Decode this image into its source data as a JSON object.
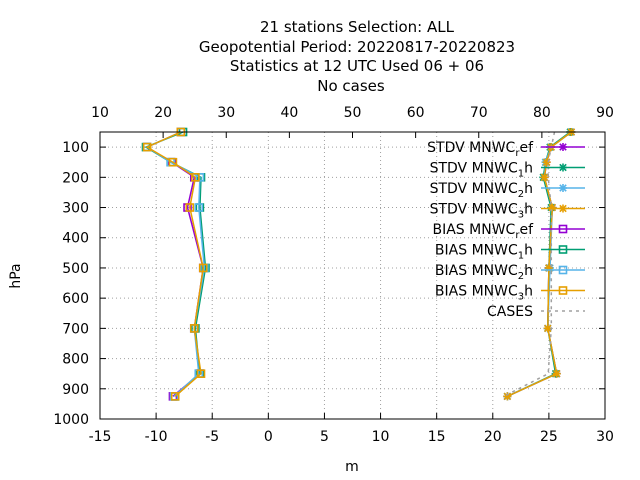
{
  "chart_data": {
    "type": "line",
    "title_lines": [
      "21 stations Selection: ALL",
      "Geopotential  Period: 20220817-20220823",
      "Statistics at 12 UTC  Used  06 + 06",
      "No cases"
    ],
    "xlabel": "m",
    "ylabel": "hPa",
    "x2label": "",
    "xlim": [
      -15,
      30
    ],
    "x2lim": [
      10,
      90
    ],
    "ylim": [
      1000,
      50
    ],
    "y_reversed": true,
    "xticks": [
      -15,
      -10,
      -5,
      0,
      5,
      10,
      15,
      20,
      25,
      30
    ],
    "x2ticks": [
      10,
      20,
      30,
      40,
      50,
      60,
      70,
      80,
      90
    ],
    "yticks": [
      100,
      200,
      300,
      400,
      500,
      600,
      700,
      800,
      900,
      1000
    ],
    "grid": true,
    "legend_position": "top-right",
    "levels": [
      50,
      100,
      150,
      200,
      300,
      500,
      700,
      850,
      925
    ],
    "series": [
      {
        "name": "STDV MNWC_ref",
        "name_main": "STDV MNWC",
        "name_sub": "r",
        "name_tail": "ef",
        "color": "#9400d3",
        "marker": "star",
        "values": [
          27.0,
          25.2,
          24.8,
          24.6,
          25.3,
          25.0,
          24.9,
          25.7,
          21.3
        ]
      },
      {
        "name": "STDV MNWC_1h",
        "name_main": "STDV MNWC",
        "name_sub": "1",
        "name_tail": "h",
        "color": "#009e73",
        "marker": "star",
        "values": [
          26.9,
          25.1,
          24.7,
          24.5,
          25.2,
          25.0,
          24.9,
          25.6,
          21.3
        ]
      },
      {
        "name": "STDV MNWC_2h",
        "name_main": "STDV MNWC",
        "name_sub": "2",
        "name_tail": "h",
        "color": "#56b4e9",
        "marker": "star",
        "values": [
          27.0,
          25.2,
          24.7,
          24.6,
          25.3,
          25.1,
          24.9,
          25.7,
          21.3
        ]
      },
      {
        "name": "STDV MNWC_3h",
        "name_main": "STDV MNWC",
        "name_sub": "3",
        "name_tail": "h",
        "color": "#e69f00",
        "marker": "star",
        "values": [
          27.0,
          25.2,
          24.8,
          24.6,
          25.3,
          25.0,
          24.9,
          25.7,
          21.3
        ]
      },
      {
        "name": "BIAS MNWC_ref",
        "name_main": "BIAS MNWC",
        "name_sub": "r",
        "name_tail": "ef",
        "color": "#9400d3",
        "marker": "square",
        "values": [
          -7.8,
          -10.8,
          -8.6,
          -6.6,
          -7.2,
          -5.8,
          -6.6,
          -6.1,
          -8.5
        ]
      },
      {
        "name": "BIAS MNWC_1h",
        "name_main": "BIAS MNWC",
        "name_sub": "1",
        "name_tail": "h",
        "color": "#009e73",
        "marker": "square",
        "values": [
          -7.6,
          -10.9,
          -8.7,
          -6.0,
          -6.1,
          -5.6,
          -6.5,
          -6.1,
          -8.3
        ]
      },
      {
        "name": "BIAS MNWC_2h",
        "name_main": "BIAS MNWC",
        "name_sub": "2",
        "name_tail": "h",
        "color": "#56b4e9",
        "marker": "square",
        "values": [
          -7.8,
          -10.8,
          -8.7,
          -6.1,
          -6.2,
          -5.7,
          -6.6,
          -6.2,
          -8.4
        ]
      },
      {
        "name": "BIAS MNWC_3h",
        "name_main": "BIAS MNWC",
        "name_sub": "3",
        "name_tail": "h",
        "color": "#e69f00",
        "marker": "square",
        "values": [
          -7.8,
          -10.8,
          -8.5,
          -6.5,
          -7.0,
          -5.8,
          -6.6,
          -6.0,
          -8.3
        ]
      },
      {
        "name": "CASES",
        "name_main": "CASES",
        "name_sub": "",
        "name_tail": "",
        "color": "#a0a0a0",
        "marker": "none",
        "dashed": true,
        "axis": "top",
        "values": [
          82.0,
          81.5,
          81.0,
          81.0,
          81.5,
          81.5,
          81.5,
          81.0,
          74.0
        ]
      }
    ]
  }
}
